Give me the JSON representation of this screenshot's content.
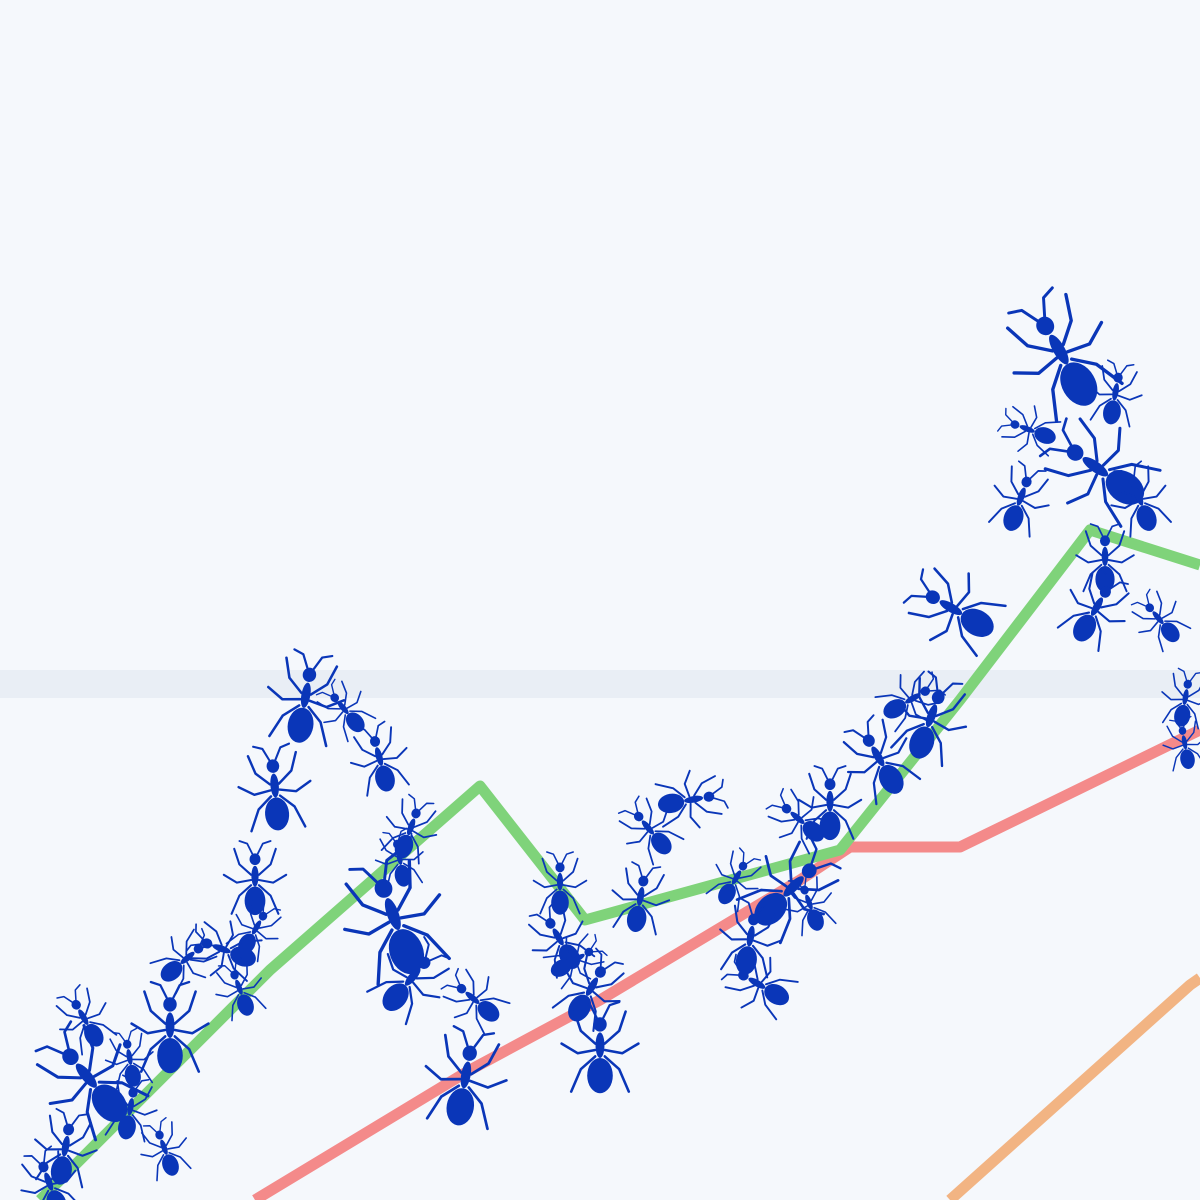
{
  "scene": {
    "subject": "ants",
    "colors": {
      "background": "#f5f8fc",
      "band": "#e9eef5",
      "ant": "#0a36b8",
      "line_green": "#7fd37a",
      "line_red": "#f48a8a",
      "line_orange": "#f2b483"
    }
  }
}
